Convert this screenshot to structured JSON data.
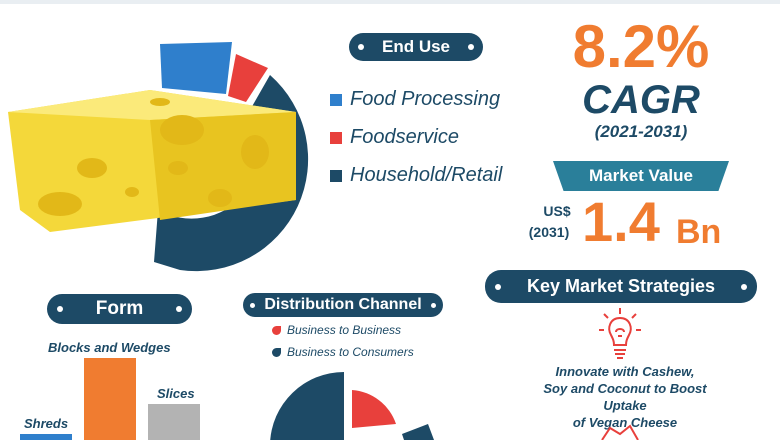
{
  "end_use": {
    "heading": "End Use",
    "items": [
      {
        "label": "Food Processing",
        "color": "#2f7fcc"
      },
      {
        "label": "Foodservice",
        "color": "#e8403c"
      },
      {
        "label": "Household/Retail",
        "color": "#1d4a66"
      }
    ]
  },
  "cagr": {
    "value": "8.2%",
    "label": "CAGR",
    "period": "(2021-2031)"
  },
  "market_value": {
    "heading": "Market Value",
    "currency": "US$",
    "year": "(2031)",
    "amount": "1.4",
    "unit": "Bn"
  },
  "strategies": {
    "heading": "Key Market Strategies",
    "icon": "lightbulb-icon",
    "text_line1": "Innovate with Cashew,",
    "text_line2": "Soy and Coconut to Boost Uptake",
    "text_line3": "of Vegan Cheese"
  },
  "form": {
    "heading": "Form",
    "bars": [
      {
        "label": "Shreds",
        "color": "#2f7fcc"
      },
      {
        "label": "Blocks and Wedges",
        "color": "#f07c30"
      },
      {
        "label": "Slices",
        "color": "#b3b3b3"
      }
    ]
  },
  "distribution": {
    "heading": "Distribution Channel",
    "items": [
      {
        "label": "Business to Business",
        "color": "#e8403c"
      },
      {
        "label": "Business to Consumers",
        "color": "#1d4a66"
      }
    ]
  },
  "colors": {
    "navy": "#1d4a66",
    "orange": "#f07c30",
    "teal": "#2a7f9a"
  }
}
